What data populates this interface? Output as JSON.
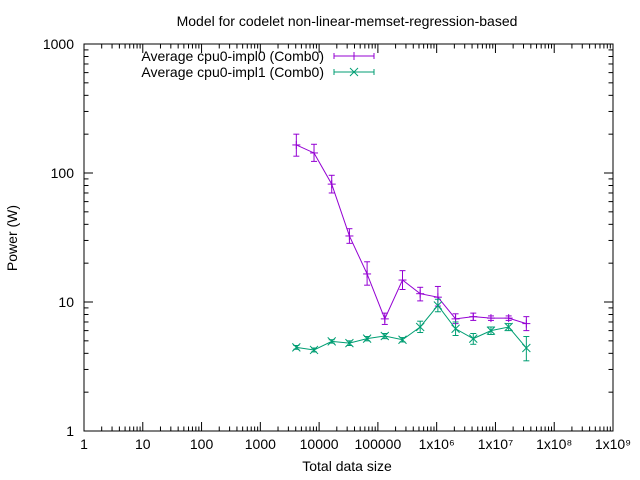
{
  "chart_data": {
    "type": "line",
    "title": "Model for codelet non-linear-memset-regression-based",
    "xlabel": "Total data size",
    "ylabel": "Power (W)",
    "xscale": "log",
    "yscale": "log",
    "xlim": [
      1,
      1000000000
    ],
    "ylim": [
      1,
      1000
    ],
    "x_ticks": [
      {
        "value": 1,
        "label": "1"
      },
      {
        "value": 10,
        "label": "10"
      },
      {
        "value": 100,
        "label": "100"
      },
      {
        "value": 1000,
        "label": "1000"
      },
      {
        "value": 10000,
        "label": "10000"
      },
      {
        "value": 100000,
        "label": "100000"
      },
      {
        "value": 1000000,
        "label": "1x10⁶"
      },
      {
        "value": 10000000,
        "label": "1x10⁷"
      },
      {
        "value": 100000000,
        "label": "1x10⁸"
      },
      {
        "value": 1000000000,
        "label": "1x10⁹"
      }
    ],
    "y_ticks": [
      {
        "value": 1,
        "label": "1"
      },
      {
        "value": 10,
        "label": "10"
      },
      {
        "value": 100,
        "label": "100"
      },
      {
        "value": 1000,
        "label": "1000"
      }
    ],
    "legend_position": "top-left",
    "series": [
      {
        "name": "Average cpu0-impl0 (Comb0)",
        "color": "#9400d3",
        "marker": "plus",
        "points": [
          {
            "x": 4096,
            "y": 165,
            "err_low": 135,
            "err_high": 200
          },
          {
            "x": 8192,
            "y": 143,
            "err_low": 123,
            "err_high": 167
          },
          {
            "x": 16384,
            "y": 82,
            "err_low": 70,
            "err_high": 96
          },
          {
            "x": 32768,
            "y": 32.5,
            "err_low": 28.5,
            "err_high": 37
          },
          {
            "x": 65536,
            "y": 16.5,
            "err_low": 13.5,
            "err_high": 20.5
          },
          {
            "x": 131072,
            "y": 7.4,
            "err_low": 6.7,
            "err_high": 8.2
          },
          {
            "x": 262144,
            "y": 14.8,
            "err_low": 12.5,
            "err_high": 17.5
          },
          {
            "x": 524288,
            "y": 11.6,
            "err_low": 10.2,
            "err_high": 13.0
          },
          {
            "x": 1048576,
            "y": 10.9,
            "err_low": 9.3,
            "err_high": 13.2
          },
          {
            "x": 2097152,
            "y": 7.4,
            "err_low": 6.8,
            "err_high": 8.1
          },
          {
            "x": 4194304,
            "y": 7.7,
            "err_low": 7.2,
            "err_high": 8.2
          },
          {
            "x": 8388608,
            "y": 7.5,
            "err_low": 7.2,
            "err_high": 7.8
          },
          {
            "x": 16777216,
            "y": 7.5,
            "err_low": 7.2,
            "err_high": 7.8
          },
          {
            "x": 33554432,
            "y": 6.8,
            "err_low": 6.0,
            "err_high": 7.7
          }
        ]
      },
      {
        "name": "Average cpu0-impl1 (Comb0)",
        "color": "#009e73",
        "marker": "cross",
        "points": [
          {
            "x": 4096,
            "y": 4.45,
            "err_low": 4.3,
            "err_high": 4.6
          },
          {
            "x": 8192,
            "y": 4.25,
            "err_low": 4.1,
            "err_high": 4.4
          },
          {
            "x": 16384,
            "y": 4.95,
            "err_low": 4.8,
            "err_high": 5.1
          },
          {
            "x": 32768,
            "y": 4.8,
            "err_low": 4.6,
            "err_high": 5.0
          },
          {
            "x": 65536,
            "y": 5.2,
            "err_low": 5.0,
            "err_high": 5.4
          },
          {
            "x": 131072,
            "y": 5.45,
            "err_low": 5.2,
            "err_high": 5.7
          },
          {
            "x": 262144,
            "y": 5.1,
            "err_low": 4.9,
            "err_high": 5.3
          },
          {
            "x": 524288,
            "y": 6.4,
            "err_low": 5.8,
            "err_high": 7.1
          },
          {
            "x": 1048576,
            "y": 9.4,
            "err_low": 8.4,
            "err_high": 10.5
          },
          {
            "x": 2097152,
            "y": 6.2,
            "err_low": 5.5,
            "err_high": 7.0
          },
          {
            "x": 4194304,
            "y": 5.2,
            "err_low": 4.7,
            "err_high": 5.7
          },
          {
            "x": 8388608,
            "y": 6.0,
            "err_low": 5.6,
            "err_high": 6.4
          },
          {
            "x": 16777216,
            "y": 6.4,
            "err_low": 6.0,
            "err_high": 6.8
          },
          {
            "x": 33554432,
            "y": 4.4,
            "err_low": 3.5,
            "err_high": 5.4
          }
        ]
      }
    ]
  }
}
